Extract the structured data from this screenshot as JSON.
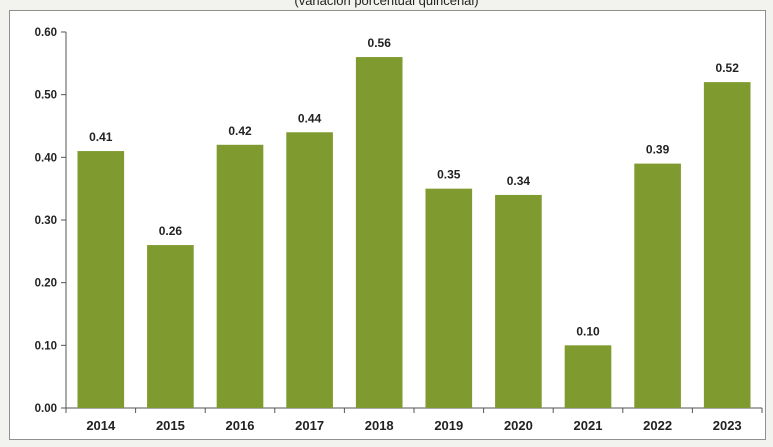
{
  "chart_data": {
    "type": "bar",
    "subtitle": "(variación porcentual quincenal)",
    "categories": [
      "2014",
      "2015",
      "2016",
      "2017",
      "2018",
      "2019",
      "2020",
      "2021",
      "2022",
      "2023"
    ],
    "values": [
      0.41,
      0.26,
      0.42,
      0.44,
      0.56,
      0.35,
      0.34,
      0.1,
      0.39,
      0.52
    ],
    "value_labels": [
      "0.41",
      "0.26",
      "0.42",
      "0.44",
      "0.56",
      "0.35",
      "0.34",
      "0.10",
      "0.39",
      "0.52"
    ],
    "ylim": [
      0,
      0.6
    ],
    "yticks": [
      "0.00",
      "0.10",
      "0.20",
      "0.30",
      "0.40",
      "0.50",
      "0.60"
    ],
    "grid": false,
    "legend": "none",
    "bar_color": "#7f9a2e"
  }
}
